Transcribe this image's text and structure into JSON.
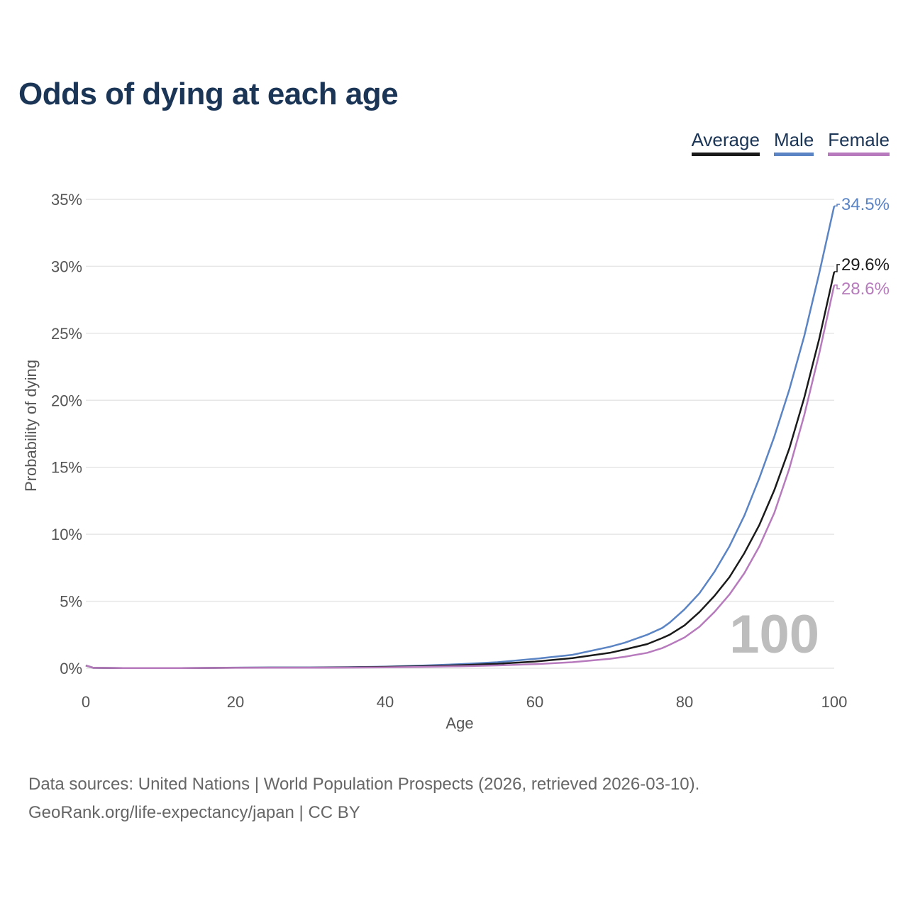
{
  "title": "Odds of dying at each age",
  "legend": {
    "average": "Average",
    "male": "Male",
    "female": "Female"
  },
  "colors": {
    "average": "#1a1a1a",
    "male": "#5b84c4",
    "female": "#b77bbd",
    "title": "#1b3557",
    "grid": "#e6e6e6",
    "watermark": "#bdbdbd"
  },
  "sources": {
    "line1": "Data sources: United Nations | World Population Prospects (2026, retrieved 2026-03-10).",
    "line2": "GeoRank.org/life-expectancy/japan | CC BY"
  },
  "chart_data": {
    "type": "line",
    "title": "Odds of dying at each age",
    "xlabel": "Age",
    "ylabel": "Probability of dying",
    "xlim": [
      0,
      100
    ],
    "ylim": [
      0,
      35
    ],
    "x_ticks": [
      0,
      20,
      40,
      60,
      80,
      100
    ],
    "x_tick_labels": [
      "0",
      "20",
      "40",
      "60",
      "80",
      "100"
    ],
    "y_ticks": [
      0,
      5,
      10,
      15,
      20,
      25,
      30,
      35
    ],
    "y_tick_labels": [
      "0%",
      "5%",
      "10%",
      "15%",
      "20%",
      "25%",
      "30%",
      "35%"
    ],
    "grid": true,
    "legend_position": "top-right",
    "current_age_label": "100",
    "x": [
      0,
      1,
      5,
      10,
      15,
      20,
      25,
      30,
      35,
      40,
      45,
      50,
      55,
      60,
      65,
      70,
      72,
      75,
      77,
      78,
      80,
      82,
      84,
      86,
      88,
      90,
      92,
      94,
      96,
      98,
      100
    ],
    "series": [
      {
        "name": "Male",
        "key": "male",
        "end_label": "34.5%",
        "values": [
          0.2,
          0.03,
          0.01,
          0.01,
          0.02,
          0.05,
          0.06,
          0.06,
          0.08,
          0.12,
          0.2,
          0.3,
          0.45,
          0.7,
          1.0,
          1.6,
          1.9,
          2.5,
          3.0,
          3.4,
          4.4,
          5.6,
          7.2,
          9.1,
          11.4,
          14.2,
          17.3,
          20.8,
          24.8,
          29.5,
          34.5
        ]
      },
      {
        "name": "Average",
        "key": "average",
        "end_label": "29.6%",
        "values": [
          0.2,
          0.03,
          0.01,
          0.01,
          0.02,
          0.04,
          0.05,
          0.05,
          0.07,
          0.1,
          0.15,
          0.22,
          0.33,
          0.5,
          0.75,
          1.15,
          1.4,
          1.8,
          2.25,
          2.5,
          3.2,
          4.2,
          5.4,
          6.8,
          8.6,
          10.7,
          13.3,
          16.4,
          20.2,
          24.6,
          29.6
        ]
      },
      {
        "name": "Female",
        "key": "female",
        "end_label": "28.6%",
        "values": [
          0.2,
          0.03,
          0.01,
          0.01,
          0.02,
          0.03,
          0.04,
          0.04,
          0.05,
          0.07,
          0.1,
          0.15,
          0.21,
          0.3,
          0.45,
          0.7,
          0.85,
          1.15,
          1.5,
          1.75,
          2.3,
          3.1,
          4.2,
          5.5,
          7.1,
          9.1,
          11.6,
          14.9,
          18.9,
          23.5,
          28.6
        ]
      }
    ]
  }
}
